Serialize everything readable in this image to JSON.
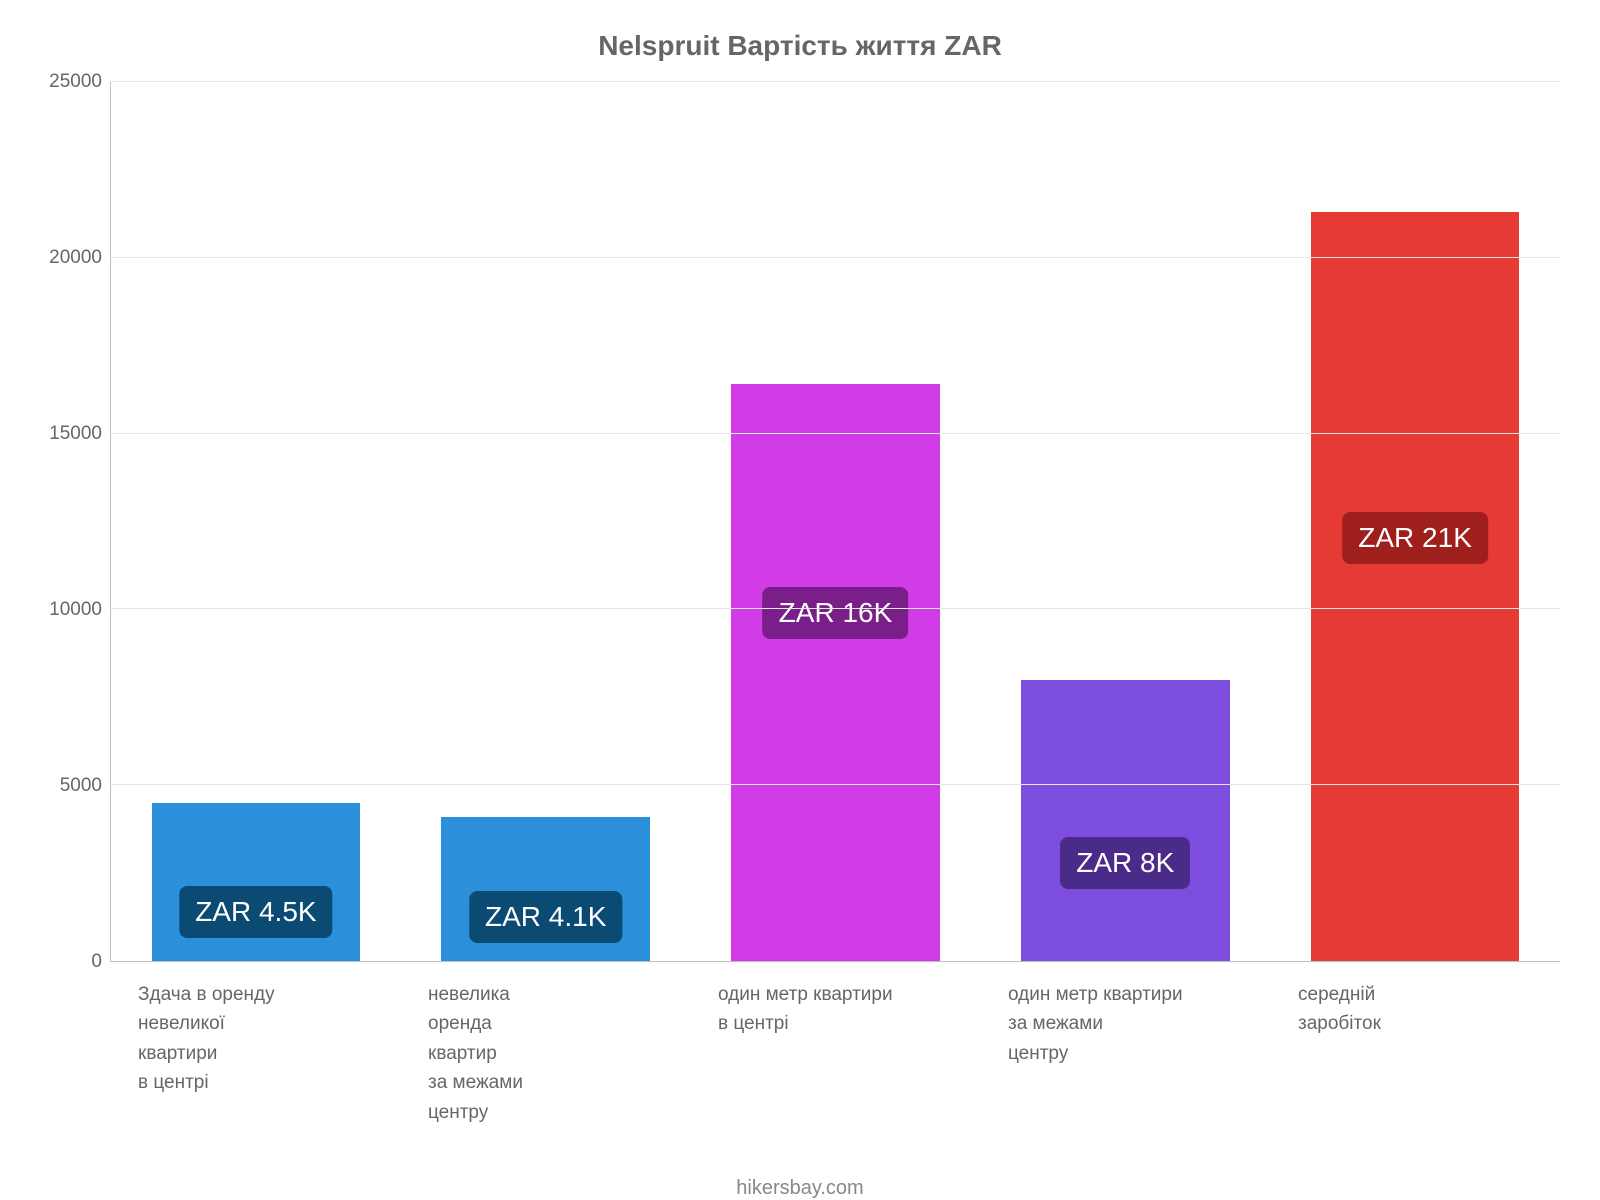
{
  "chart": {
    "title": "Nelspruit Вартість життя ZAR",
    "title_fontsize": 28,
    "title_color": "#666666",
    "footer": "hikersbay.com",
    "footer_fontsize": 20,
    "footer_color": "#888888",
    "background_color": "#ffffff",
    "ylim": [
      0,
      25000
    ],
    "yticks": [
      0,
      5000,
      10000,
      15000,
      20000,
      25000
    ],
    "ytick_fontsize": 19,
    "ytick_color": "#666666",
    "grid_color": "#e6e6e6",
    "axis_line_color": "#bfbfbf",
    "bar_width_pct": 72,
    "bar_label_fontsize": 28,
    "xlabel_fontsize": 19,
    "xlabel_color": "#666666",
    "bars": [
      {
        "value": 4500,
        "fill": "#2b90d9",
        "label_text": "ZAR 4.5K",
        "label_bg": "#0a4a73",
        "label_offset_pct": 67,
        "xlabel": "Здача в оренду\nневеликої\nквартири\nв центрі"
      },
      {
        "value": 4100,
        "fill": "#2b90d9",
        "label_text": "ZAR 4.1K",
        "label_bg": "#0a4a73",
        "label_offset_pct": 67,
        "xlabel": "невелика\nоренда\nквартир\nза межами\nцентру"
      },
      {
        "value": 16400,
        "fill": "#d13ce6",
        "label_text": "ZAR 16K",
        "label_bg": "#7a1f8a",
        "label_offset_pct": 39,
        "xlabel": "один метр квартири\nв центрі"
      },
      {
        "value": 8000,
        "fill": "#7c4dde",
        "label_text": "ZAR 8K",
        "label_bg": "#4a2b8a",
        "label_offset_pct": 64,
        "xlabel": "один метр квартири\nза межами\nцентру"
      },
      {
        "value": 21300,
        "fill": "#e63a35",
        "label_text": "ZAR 21K",
        "label_bg": "#9e1f1c",
        "label_offset_pct": 43,
        "xlabel": "середній\nзаробіток"
      }
    ]
  }
}
